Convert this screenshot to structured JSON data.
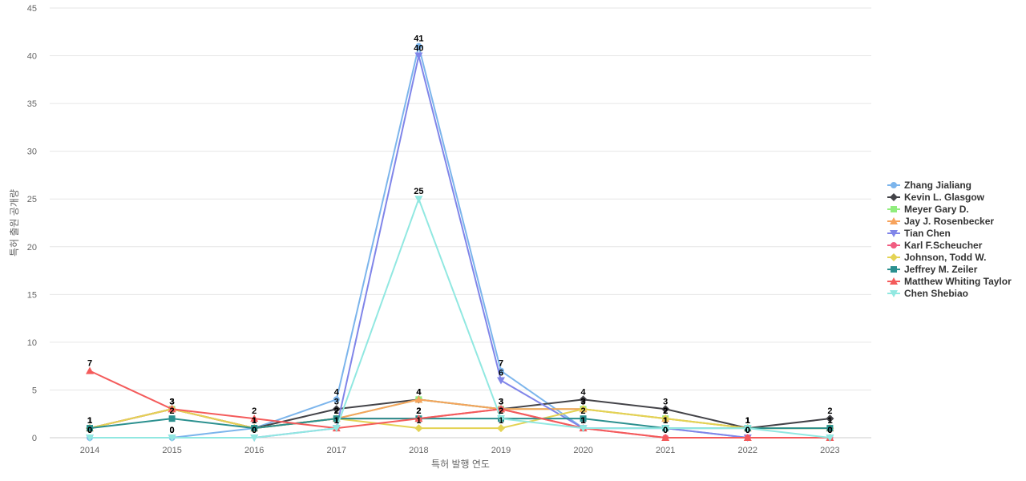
{
  "chart_data": {
    "type": "line",
    "title": "",
    "xlabel": "특허 발행 연도",
    "ylabel": "특허 출원 공개량",
    "ylim": [
      0,
      45
    ],
    "yticks": [
      0,
      5,
      10,
      15,
      20,
      25,
      30,
      35,
      40,
      45
    ],
    "x": [
      "2014",
      "2015",
      "2016",
      "2017",
      "2018",
      "2019",
      "2020",
      "2021",
      "2022",
      "2023"
    ],
    "grid": true,
    "legend_position": "right",
    "series": [
      {
        "name": "Zhang Jialiang",
        "color": "#7cb5ec",
        "marker": "circle",
        "values": [
          0,
          0,
          1,
          4,
          41,
          7,
          1,
          1,
          0,
          0
        ]
      },
      {
        "name": "Kevin L. Glasgow",
        "color": "#434348",
        "marker": "diamond",
        "values": [
          1,
          3,
          1,
          3,
          4,
          3,
          4,
          3,
          1,
          2
        ]
      },
      {
        "name": "Meyer Gary D.",
        "color": "#90ed7d",
        "marker": "square",
        "values": [
          1,
          3,
          1,
          2,
          4,
          3,
          3,
          2,
          1,
          1
        ]
      },
      {
        "name": "Jay J. Rosenbecker",
        "color": "#f7a35c",
        "marker": "triangle",
        "values": [
          1,
          3,
          1,
          2,
          4,
          3,
          3,
          2,
          1,
          1
        ]
      },
      {
        "name": "Tian Chen",
        "color": "#8085e9",
        "marker": "triangle-down",
        "values": [
          0,
          0,
          0,
          1,
          40,
          6,
          1,
          1,
          0,
          0
        ]
      },
      {
        "name": "Karl F.Scheucher",
        "color": "#f15c80",
        "marker": "circle",
        "values": [
          1,
          3,
          1,
          2,
          2,
          3,
          1,
          0,
          0,
          0
        ]
      },
      {
        "name": "Johnson, Todd W.",
        "color": "#e4d354",
        "marker": "diamond",
        "values": [
          1,
          3,
          1,
          2,
          1,
          1,
          3,
          2,
          1,
          1
        ]
      },
      {
        "name": "Jeffrey M. Zeiler",
        "color": "#2b908f",
        "marker": "square",
        "values": [
          1,
          2,
          1,
          2,
          2,
          2,
          2,
          1,
          1,
          1
        ]
      },
      {
        "name": "Matthew Whiting Taylor",
        "color": "#f45b5b",
        "marker": "triangle",
        "values": [
          7,
          3,
          2,
          1,
          2,
          3,
          1,
          0,
          0,
          0
        ]
      },
      {
        "name": "Chen Shebiao",
        "color": "#91e8e1",
        "marker": "triangle-down",
        "values": [
          0,
          0,
          0,
          1,
          25,
          2,
          1,
          1,
          1,
          0
        ]
      }
    ]
  }
}
